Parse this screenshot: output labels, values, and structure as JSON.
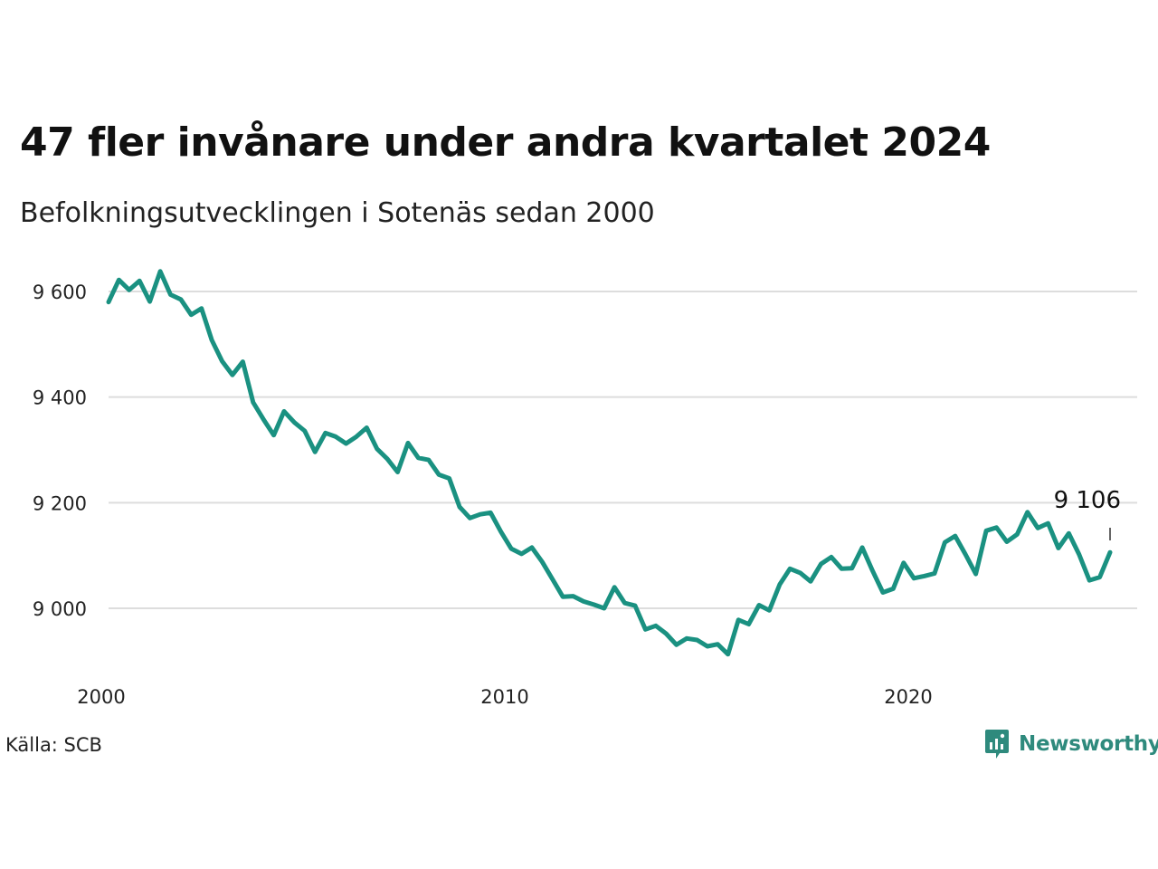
{
  "title": "47 fler invånare under andra kvartalet 2024",
  "subtitle": "Befolkningsutvecklingen i Sotenäs sedan 2000",
  "source": "Källa: SCB",
  "brand": {
    "name": "Newsworthy",
    "color": "#2e8a7d"
  },
  "colors": {
    "line": "#1a9181",
    "grid": "#dddddd",
    "text": "#111111"
  },
  "chart_data": {
    "type": "line",
    "title": "47 fler invånare under andra kvartalet 2024",
    "subtitle": "Befolkningsutvecklingen i Sotenäs sedan 2000",
    "xlabel": "",
    "ylabel": "",
    "xlim": [
      2000.0,
      2025.0
    ],
    "ylim": [
      8900,
      9640
    ],
    "x_ticks": [
      2000,
      2010,
      2020
    ],
    "x_tick_labels": [
      "2000",
      "2010",
      "2020"
    ],
    "y_ticks": [
      9000,
      9200,
      9400,
      9600
    ],
    "y_tick_labels": [
      "9 000",
      "9 200",
      "9 400",
      "9 600"
    ],
    "grid": true,
    "legend": "none",
    "end_label": "9 106",
    "series": [
      {
        "values": [
          9580,
          9622,
          9603,
          9620,
          9581,
          9638,
          9594,
          9585,
          9556,
          9568,
          9508,
          9468,
          9442,
          9467,
          9390,
          9358,
          9328,
          9373,
          9352,
          9336,
          9296,
          9332,
          9325,
          9312,
          9325,
          9342,
          9302,
          9283,
          9258,
          9313,
          9285,
          9281,
          9253,
          9246,
          9192,
          9171,
          9178,
          9181,
          9145,
          9113,
          9103,
          9115,
          9088,
          9055,
          9022,
          9023,
          9013,
          9007,
          9000,
          9040,
          9010,
          9005,
          8960,
          8967,
          8952,
          8931,
          8943,
          8940,
          8928,
          8932,
          8913,
          8978,
          8970,
          9006,
          8996,
          9045,
          9075,
          9067,
          9051,
          9084,
          9097,
          9075,
          9076,
          9115,
          9071,
          9030,
          9037,
          9086,
          9057,
          9061,
          9066,
          9125,
          9137,
          9102,
          9065,
          9147,
          9153,
          9126,
          9140,
          9182,
          9152,
          9161,
          9114,
          9142,
          9102,
          9053,
          9059,
          9106
        ]
      }
    ]
  }
}
